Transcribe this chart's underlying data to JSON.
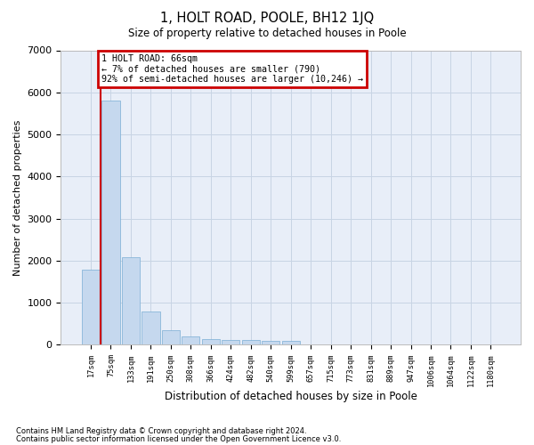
{
  "title": "1, HOLT ROAD, POOLE, BH12 1JQ",
  "subtitle": "Size of property relative to detached houses in Poole",
  "xlabel": "Distribution of detached houses by size in Poole",
  "ylabel": "Number of detached properties",
  "bar_color": "#c5d8ee",
  "bar_edge_color": "#7aadd4",
  "grid_color": "#c8d4e4",
  "bg_color": "#e8eef8",
  "annotation_text": "1 HOLT ROAD: 66sqm\n← 7% of detached houses are smaller (790)\n92% of semi-detached houses are larger (10,246) →",
  "annotation_box_color": "#ffffff",
  "annotation_border_color": "#cc0000",
  "vline_color": "#cc0000",
  "categories": [
    "17sqm",
    "75sqm",
    "133sqm",
    "191sqm",
    "250sqm",
    "308sqm",
    "366sqm",
    "424sqm",
    "482sqm",
    "540sqm",
    "599sqm",
    "657sqm",
    "715sqm",
    "773sqm",
    "831sqm",
    "889sqm",
    "947sqm",
    "1006sqm",
    "1064sqm",
    "1122sqm",
    "1180sqm"
  ],
  "values": [
    1780,
    5800,
    2080,
    790,
    350,
    200,
    130,
    115,
    115,
    95,
    95,
    0,
    0,
    0,
    0,
    0,
    0,
    0,
    0,
    0,
    0
  ],
  "ylim": [
    0,
    7000
  ],
  "yticks": [
    0,
    1000,
    2000,
    3000,
    4000,
    5000,
    6000,
    7000
  ],
  "footnote1": "Contains HM Land Registry data © Crown copyright and database right 2024.",
  "footnote2": "Contains public sector information licensed under the Open Government Licence v3.0."
}
